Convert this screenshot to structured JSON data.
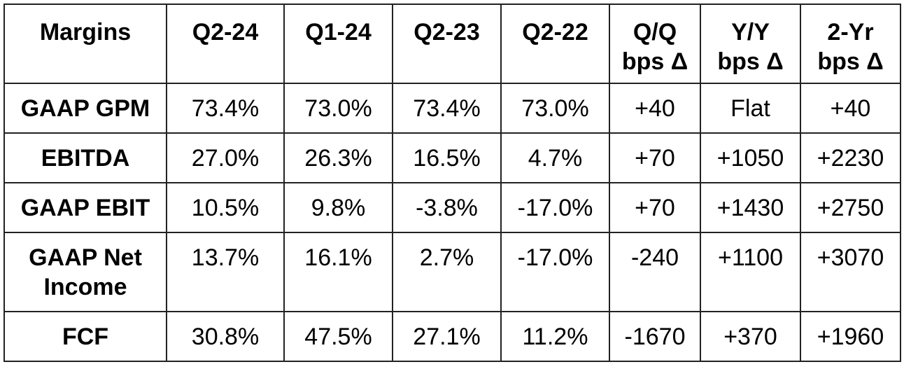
{
  "table": {
    "header": [
      "Margins",
      "Q2-24",
      "Q1-24",
      "Q2-23",
      "Q2-22",
      "Q/Q\nbps Δ",
      "Y/Y\nbps Δ",
      "2-Yr\nbps Δ"
    ],
    "rows": [
      [
        "GAAP GPM",
        "73.4%",
        "73.0%",
        "73.4%",
        "73.0%",
        "+40",
        "Flat",
        "+40"
      ],
      [
        "EBITDA",
        "27.0%",
        "26.3%",
        "16.5%",
        "4.7%",
        "+70",
        "+1050",
        "+2230"
      ],
      [
        "GAAP EBIT",
        "10.5%",
        "9.8%",
        "-3.8%",
        "-17.0%",
        "+70",
        "+1430",
        "+2750"
      ],
      [
        "GAAP Net\nIncome",
        "13.7%",
        "16.1%",
        "2.7%",
        "-17.0%",
        "-240",
        "+1100",
        "+3070"
      ],
      [
        "FCF",
        "30.8%",
        "47.5%",
        "27.1%",
        "11.2%",
        "-1670",
        "+370",
        "+1960"
      ]
    ]
  }
}
